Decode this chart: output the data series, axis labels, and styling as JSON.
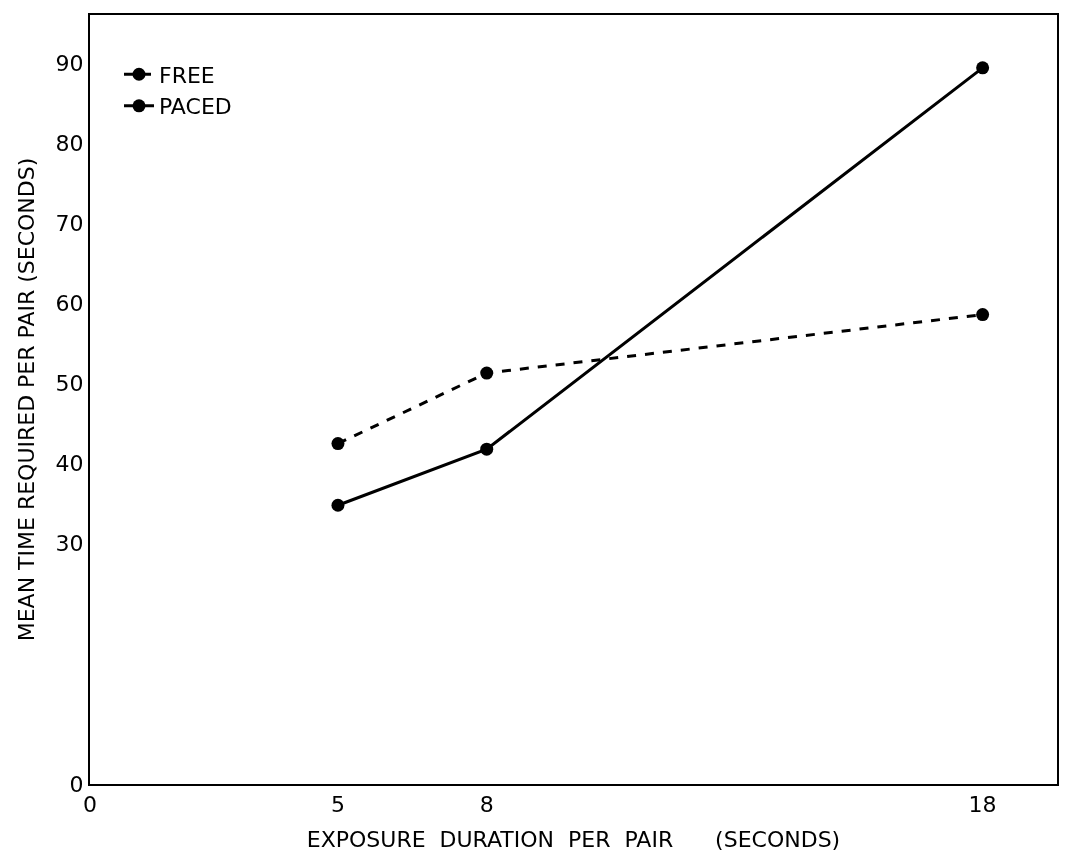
{
  "chart_data": {
    "type": "line",
    "xlabel": "EXPOSURE  DURATION  PER  PAIR      (SECONDS)",
    "ylabel": "MEAN TIME REQUIRED PER PAIR (SECONDS)",
    "x": [
      5,
      8,
      18
    ],
    "series": [
      {
        "name": "FREE",
        "color": "#000000",
        "values": [
          42.5,
          51.3,
          58.6
        ],
        "line_style": "dashed"
      },
      {
        "name": "PACED",
        "color": "#000000",
        "values": [
          34.8,
          41.8,
          89.4
        ],
        "line_style": "solid"
      }
    ],
    "xlim": [
      0,
      19.5
    ],
    "xticks": [
      0,
      5,
      8,
      18
    ],
    "ylim": [
      0,
      96
    ],
    "yticks": [
      0,
      30,
      40,
      50,
      60,
      70,
      80,
      90
    ],
    "legend": "top left",
    "marker": "circle"
  }
}
